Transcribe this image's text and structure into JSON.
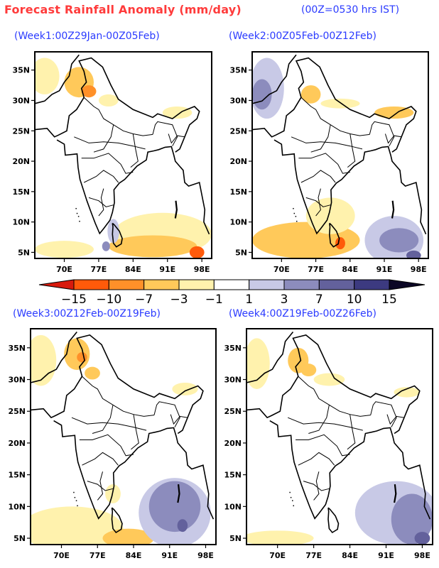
{
  "header": {
    "title": "Forecast Rainfall Anomaly (mm/day)",
    "subtitle": "(00Z=0530 hrs IST)"
  },
  "axes": {
    "lon_ticks": [
      "70E",
      "77E",
      "84E",
      "91E",
      "98E"
    ],
    "lon_values": [
      70,
      77,
      84,
      91,
      98
    ],
    "lat_ticks": [
      "35N",
      "30N",
      "25N",
      "20N",
      "15N",
      "10N",
      "5N"
    ],
    "lat_values": [
      35,
      30,
      25,
      20,
      15,
      10,
      5
    ],
    "lon_range": [
      64,
      100
    ],
    "lat_range": [
      4,
      38
    ]
  },
  "panels": [
    {
      "label": "(Week1:00Z29Jan-00Z05Feb)"
    },
    {
      "label": "(Week2:00Z05Feb-00Z12Feb)"
    },
    {
      "label": "(Week3:00Z12Feb-00Z19Feb)"
    },
    {
      "label": "(Week4:00Z19Feb-00Z26Feb)"
    }
  ],
  "colorbar": {
    "labels": [
      "−15",
      "−10",
      "−7",
      "−3",
      "−1",
      "1",
      "3",
      "7",
      "10",
      "15"
    ],
    "levels": [
      -15,
      -10,
      -7,
      -3,
      -1,
      1,
      3,
      7,
      10,
      15
    ],
    "colors": [
      "#d81a0d",
      "#ff5a0a",
      "#ff9029",
      "#ffc95a",
      "#fff2ad",
      "#ffffff",
      "#c8c9e6",
      "#8c8cbd",
      "#63619c",
      "#3c3a80",
      "#0b0725"
    ]
  },
  "colors": {
    "title": "#ff3b3b",
    "labels": "#2b3bff",
    "light_pos": "#c8c9e6",
    "mid_pos": "#8c8cbd",
    "dark_pos": "#63619c",
    "light_neg": "#fff2ad",
    "mid_neg": "#ffc95a",
    "strong_neg": "#ff9029",
    "deep_neg": "#ff5a0a"
  }
}
